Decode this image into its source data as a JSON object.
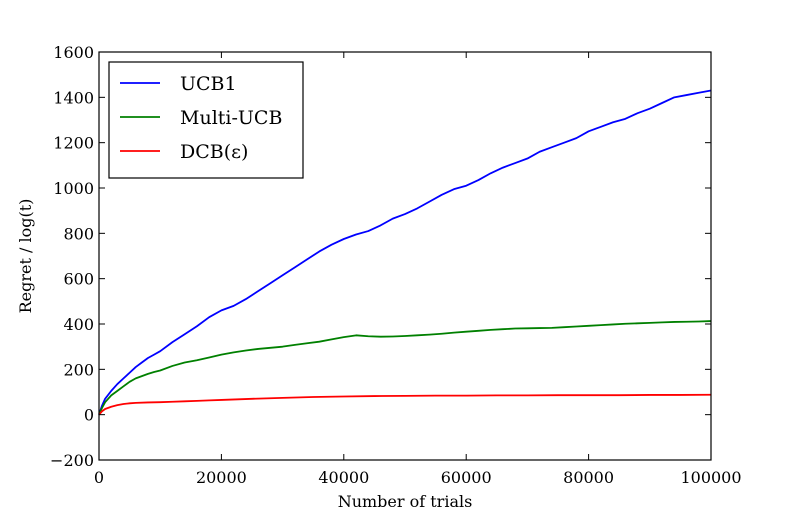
{
  "chart_data": {
    "type": "line",
    "title": "",
    "xlabel": "Number of trials",
    "ylabel": "Regret / log(t)",
    "xlim": [
      0,
      100000
    ],
    "ylim": [
      -200,
      1600
    ],
    "x_ticks": [
      0,
      20000,
      40000,
      60000,
      80000,
      100000
    ],
    "x_tick_labels": [
      "0",
      "20000",
      "40000",
      "60000",
      "80000",
      "100000"
    ],
    "y_ticks": [
      -200,
      0,
      200,
      400,
      600,
      800,
      1000,
      1200,
      1400,
      1600
    ],
    "y_tick_labels": [
      "−200",
      "0",
      "200",
      "400",
      "600",
      "800",
      "1000",
      "1200",
      "1400",
      "1600"
    ],
    "grid": false,
    "legend_position": "top-left",
    "series": [
      {
        "name": "UCB1",
        "color": "#0000ff",
        "x": [
          0,
          500,
          1000,
          2000,
          3000,
          4000,
          5000,
          6000,
          7000,
          8000,
          9000,
          10000,
          12000,
          14000,
          16000,
          18000,
          20000,
          22000,
          24000,
          26000,
          28000,
          30000,
          32000,
          34000,
          36000,
          38000,
          40000,
          42000,
          44000,
          46000,
          48000,
          50000,
          52000,
          54000,
          56000,
          58000,
          60000,
          62000,
          64000,
          66000,
          68000,
          70000,
          72000,
          74000,
          76000,
          78000,
          80000,
          82000,
          84000,
          86000,
          88000,
          90000,
          92000,
          94000,
          96000,
          98000,
          100000
        ],
        "y": [
          0,
          40,
          70,
          105,
          135,
          160,
          185,
          210,
          230,
          250,
          265,
          280,
          320,
          355,
          390,
          430,
          460,
          480,
          510,
          545,
          580,
          615,
          650,
          685,
          720,
          750,
          775,
          795,
          810,
          835,
          865,
          885,
          910,
          940,
          970,
          995,
          1010,
          1035,
          1065,
          1090,
          1110,
          1130,
          1160,
          1180,
          1200,
          1220,
          1250,
          1270,
          1290,
          1305,
          1330,
          1350,
          1375,
          1400,
          1410,
          1420,
          1430
        ]
      },
      {
        "name": "Multi-UCB",
        "color": "#008000",
        "x": [
          0,
          500,
          1000,
          2000,
          3000,
          4000,
          5000,
          6000,
          7000,
          8000,
          9000,
          10000,
          12000,
          14000,
          16000,
          18000,
          20000,
          22000,
          24000,
          26000,
          28000,
          30000,
          32000,
          34000,
          36000,
          38000,
          40000,
          42000,
          44000,
          46000,
          48000,
          50000,
          52000,
          54000,
          56000,
          58000,
          60000,
          62000,
          64000,
          66000,
          68000,
          70000,
          72000,
          74000,
          76000,
          78000,
          80000,
          82000,
          84000,
          86000,
          88000,
          90000,
          92000,
          94000,
          96000,
          98000,
          100000
        ],
        "y": [
          0,
          30,
          55,
          85,
          105,
          125,
          145,
          160,
          170,
          180,
          188,
          195,
          215,
          230,
          240,
          252,
          265,
          275,
          283,
          290,
          295,
          300,
          308,
          315,
          322,
          332,
          342,
          350,
          346,
          344,
          345,
          347,
          350,
          353,
          357,
          362,
          366,
          370,
          374,
          377,
          380,
          381,
          382,
          383,
          386,
          389,
          392,
          395,
          398,
          401,
          403,
          405,
          407,
          409,
          410,
          411,
          413
        ]
      },
      {
        "name": "DCB(ε)",
        "color": "#ff0000",
        "x": [
          0,
          500,
          1000,
          2000,
          3000,
          4000,
          5000,
          6000,
          8000,
          10000,
          12000,
          14000,
          16000,
          18000,
          20000,
          25000,
          30000,
          35000,
          40000,
          45000,
          50000,
          55000,
          60000,
          65000,
          70000,
          75000,
          80000,
          85000,
          90000,
          95000,
          100000
        ],
        "y": [
          0,
          15,
          25,
          35,
          42,
          47,
          50,
          52,
          54,
          55,
          57,
          59,
          61,
          63,
          65,
          70,
          74,
          78,
          80,
          82,
          83,
          84,
          84,
          85,
          85,
          86,
          86,
          86,
          87,
          87,
          88
        ]
      }
    ]
  }
}
